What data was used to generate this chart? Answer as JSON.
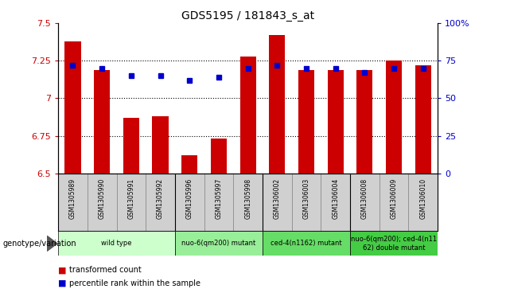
{
  "title": "GDS5195 / 181843_s_at",
  "samples": [
    "GSM1305989",
    "GSM1305990",
    "GSM1305991",
    "GSM1305992",
    "GSM1305996",
    "GSM1305997",
    "GSM1305998",
    "GSM1306002",
    "GSM1306003",
    "GSM1306004",
    "GSM1306008",
    "GSM1306009",
    "GSM1306010"
  ],
  "bar_values": [
    7.38,
    7.19,
    6.87,
    6.88,
    6.62,
    6.73,
    7.28,
    7.42,
    7.19,
    7.19,
    7.19,
    7.25,
    7.22
  ],
  "dot_values": [
    72,
    70,
    65,
    65,
    62,
    64,
    70,
    72,
    70,
    70,
    67,
    70,
    70
  ],
  "bar_bottom": 6.5,
  "ylim_left": [
    6.5,
    7.5
  ],
  "ylim_right": [
    0,
    100
  ],
  "yticks_left": [
    6.5,
    6.75,
    7.0,
    7.25,
    7.5
  ],
  "yticks_right": [
    0,
    25,
    50,
    75,
    100
  ],
  "ytick_labels_left": [
    "6.5",
    "6.75",
    "7",
    "7.25",
    "7.5"
  ],
  "ytick_labels_right": [
    "0",
    "25",
    "50",
    "75",
    "100%"
  ],
  "bar_color": "#cc0000",
  "dot_color": "#0000cc",
  "groups": [
    {
      "label": "wild type",
      "start": 0,
      "end": 3,
      "color": "#ccffcc"
    },
    {
      "label": "nuo-6(qm200) mutant",
      "start": 4,
      "end": 6,
      "color": "#99ee99"
    },
    {
      "label": "ced-4(n1162) mutant",
      "start": 7,
      "end": 9,
      "color": "#66dd66"
    },
    {
      "label": "nuo-6(qm200); ced-4(n11\n62) double mutant",
      "start": 10,
      "end": 12,
      "color": "#44cc44"
    }
  ],
  "group_boundaries": [
    3.5,
    6.5,
    9.5
  ],
  "genotype_label": "genotype/variation",
  "legend_bar_label": "transformed count",
  "legend_dot_label": "percentile rank within the sample",
  "left_tick_color": "#cc0000",
  "right_tick_color": "#0000cc",
  "bg_color": "#ffffff"
}
